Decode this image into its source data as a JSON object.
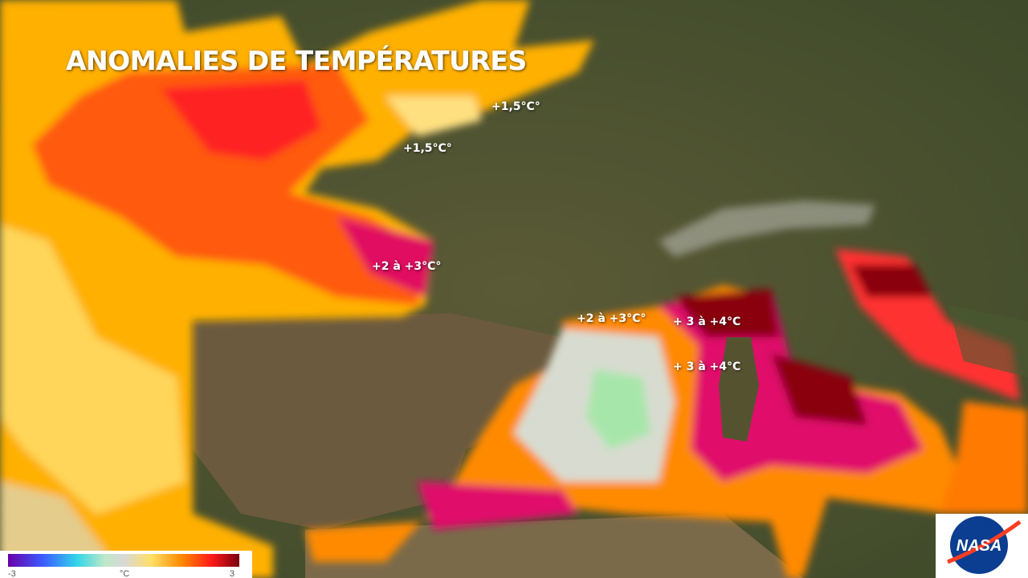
{
  "header": {
    "title": "ANOMALIES DE TEMPÉRATURES"
  },
  "annotations": [
    {
      "label": "+1,5°C°"
    },
    {
      "label": "+1,5°C°"
    },
    {
      "label": "+2 à +3°C°"
    },
    {
      "label": "+2 à +3°C°"
    },
    {
      "label": "+ 3 à +4°C"
    },
    {
      "label": "+ 3 à +4°C"
    }
  ],
  "legend": {
    "labels": [
      "-3",
      "°C",
      "3"
    ]
  },
  "logo": {
    "text": "NASA"
  }
}
